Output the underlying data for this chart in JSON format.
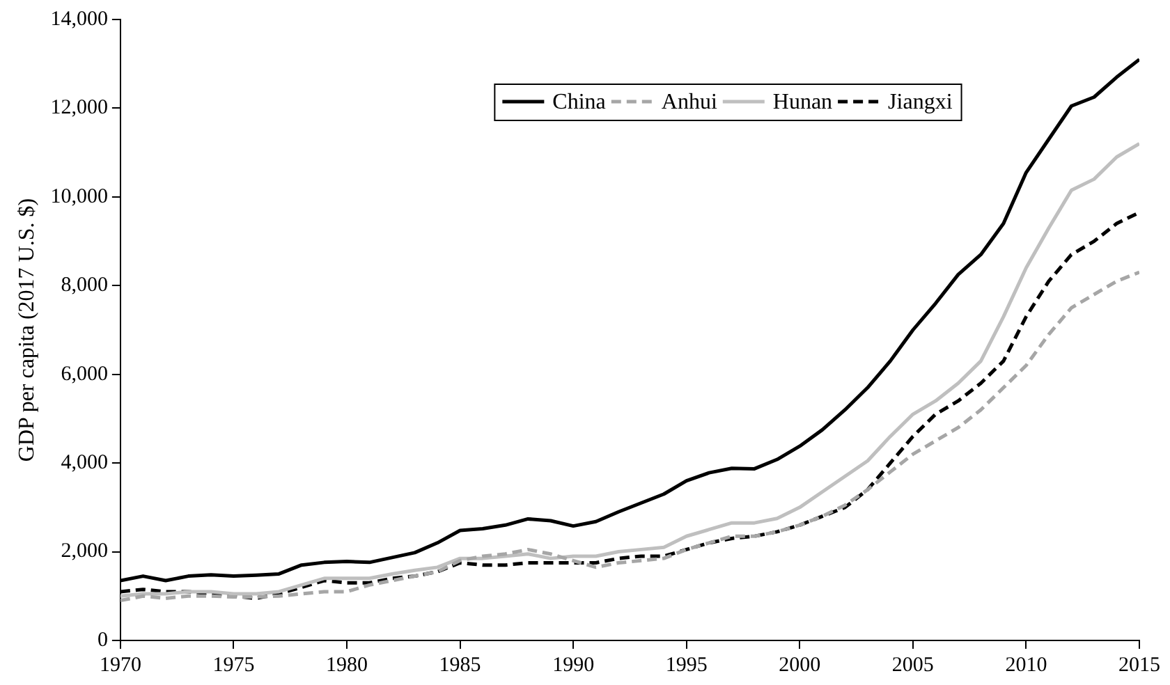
{
  "chart_data": {
    "type": "line",
    "ylabel": "GDP per capita (2017 U.S. $)",
    "x": [
      1970,
      1971,
      1972,
      1973,
      1974,
      1975,
      1976,
      1977,
      1978,
      1979,
      1980,
      1981,
      1982,
      1983,
      1984,
      1985,
      1986,
      1987,
      1988,
      1989,
      1990,
      1991,
      1992,
      1993,
      1994,
      1995,
      1996,
      1997,
      1998,
      1999,
      2000,
      2001,
      2002,
      2003,
      2004,
      2005,
      2006,
      2007,
      2008,
      2009,
      2010,
      2011,
      2012,
      2013,
      2014,
      2015
    ],
    "xlim": [
      1970,
      2015
    ],
    "xticks": [
      1970,
      1975,
      1980,
      1985,
      1990,
      1995,
      2000,
      2005,
      2010,
      2015
    ],
    "ylim": [
      0,
      14000
    ],
    "yticks": [
      0,
      {
        "value": 2000,
        "label": "2,000"
      },
      {
        "value": 4000,
        "label": "4,000"
      },
      {
        "value": 6000,
        "label": "6,000"
      },
      {
        "value": 8000,
        "label": "8,000"
      },
      {
        "value": 10000,
        "label": "10,000"
      },
      {
        "value": 12000,
        "label": "12,000"
      },
      {
        "value": 14000,
        "label": "14,000"
      }
    ],
    "grid": false,
    "legend": "top",
    "marker": "none",
    "series": [
      {
        "name": "China",
        "color": "#000000",
        "line_style": "solid",
        "values": [
          1350,
          1450,
          1350,
          1450,
          1480,
          1450,
          1470,
          1500,
          1700,
          1760,
          1780,
          1760,
          1870,
          1980,
          2200,
          2480,
          2520,
          2600,
          2740,
          2700,
          2580,
          2680,
          2900,
          3100,
          3300,
          3600,
          3780,
          3880,
          3870,
          4080,
          4380,
          4750,
          5200,
          5700,
          6300,
          7000,
          7600,
          8250,
          8700,
          9400,
          10550,
          11300,
          12050,
          12250,
          12700,
          13100
        ]
      },
      {
        "name": "Anhui",
        "color": "#a6a6a6",
        "line_style": "dashed",
        "values": [
          900,
          1000,
          950,
          1000,
          1000,
          980,
          980,
          1000,
          1050,
          1100,
          1100,
          1250,
          1350,
          1450,
          1550,
          1800,
          1900,
          1950,
          2050,
          1950,
          1800,
          1650,
          1750,
          1800,
          1850,
          2050,
          2200,
          2350,
          2350,
          2450,
          2600,
          2800,
          3050,
          3400,
          3800,
          4200,
          4500,
          4800,
          5200,
          5700,
          6200,
          6900,
          7500,
          7800,
          8100,
          8300
        ]
      },
      {
        "name": "Hunan",
        "color": "#bfbfbf",
        "line_style": "solid",
        "values": [
          1000,
          1050,
          1050,
          1100,
          1100,
          1050,
          1050,
          1100,
          1250,
          1400,
          1400,
          1400,
          1500,
          1580,
          1650,
          1850,
          1850,
          1900,
          1950,
          1850,
          1900,
          1900,
          2000,
          2050,
          2100,
          2350,
          2500,
          2650,
          2650,
          2750,
          3000,
          3350,
          3700,
          4050,
          4600,
          5100,
          5400,
          5800,
          6300,
          7300,
          8400,
          9300,
          10150,
          10400,
          10900,
          11200
        ]
      },
      {
        "name": "Jiangxi",
        "color": "#000000",
        "line_style": "dashed",
        "values": [
          1100,
          1150,
          1100,
          1100,
          1050,
          1000,
          950,
          1050,
          1200,
          1350,
          1300,
          1300,
          1400,
          1450,
          1550,
          1750,
          1700,
          1700,
          1750,
          1750,
          1750,
          1750,
          1850,
          1900,
          1900,
          2050,
          2200,
          2300,
          2350,
          2450,
          2600,
          2800,
          3000,
          3400,
          4000,
          4600,
          5100,
          5400,
          5800,
          6300,
          7300,
          8100,
          8700,
          9000,
          9400,
          9650
        ]
      }
    ]
  }
}
